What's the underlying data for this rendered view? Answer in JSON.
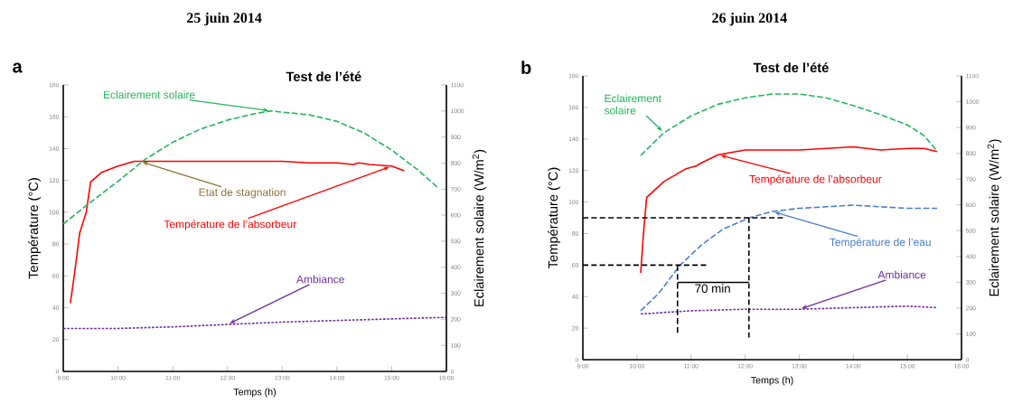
{
  "chart_data": [
    {
      "type": "line",
      "title": "25 juin 2014",
      "subtitle": "Test de l’été",
      "xlabel": "Temps (h)",
      "ylabel": "Température (°C)",
      "y2label": "Eclairement solaire (W/m$^{2}$)",
      "xlim": [
        9,
        16
      ],
      "xticks": [
        {
          "value": 9,
          "label": "9:00"
        },
        {
          "value": 10,
          "label": "10:00"
        },
        {
          "value": 11,
          "label": "11:00"
        },
        {
          "value": 12,
          "label": "12:00"
        },
        {
          "value": 13,
          "label": "13:00"
        },
        {
          "value": 14,
          "label": "14:00"
        },
        {
          "value": 15,
          "label": "15:00"
        },
        {
          "value": 16,
          "label": "16:00"
        }
      ],
      "ylim": [
        0,
        180
      ],
      "yticks": [
        0,
        20,
        40,
        60,
        80,
        100,
        120,
        140,
        160,
        180
      ],
      "y2lim": [
        0,
        1100
      ],
      "y2ticks": [
        0,
        100,
        200,
        300,
        400,
        500,
        600,
        700,
        800,
        900,
        1000,
        1100
      ],
      "annotations": [
        "a",
        {
          "text": "Etat de stagnation",
          "x": 10.4,
          "y": 132
        }
      ],
      "series": [
        {
          "name": "Eclairement solaire",
          "color": "#22b65a",
          "axis": "y2",
          "line_style": "dashed",
          "x": [
            9,
            9.5,
            10,
            10.5,
            11,
            11.5,
            12,
            12.5,
            12.8,
            13.5,
            14,
            14.5,
            15,
            15.5,
            15.85
          ],
          "values": [
            566,
            650,
            730,
            815,
            880,
            930,
            965,
            990,
            1000,
            985,
            960,
            915,
            850,
            770,
            705
          ]
        },
        {
          "name": "Température de l’absorbeur",
          "color": "#ff0000",
          "line_style": "solid",
          "x": [
            9.13,
            9.2,
            9.3,
            9.42,
            9.5,
            9.7,
            10,
            10.3,
            11,
            12,
            13,
            13.5,
            14,
            14.3,
            14.4,
            14.6,
            15,
            15.23
          ],
          "values": [
            43,
            60,
            87,
            100,
            119,
            125,
            129,
            132,
            132,
            132,
            132,
            131,
            131,
            130,
            131,
            130,
            129,
            126
          ]
        },
        {
          "name": "Ambiance",
          "color": "#7030a0",
          "line_style": "dotted",
          "x": [
            9,
            10,
            11,
            12,
            13,
            14,
            15,
            16
          ],
          "values": [
            27,
            27,
            28,
            29.5,
            31,
            32,
            33,
            34
          ]
        }
      ]
    },
    {
      "type": "line",
      "title": "26 juin 2014",
      "subtitle": "Test de l’été",
      "xlabel": "Temps (h)",
      "ylabel": "Température (°C)",
      "y2label": "Eclairement solaire (W/m$^{2}$)",
      "xlim": [
        9,
        16
      ],
      "xticks": [
        {
          "value": 9,
          "label": "9:00"
        },
        {
          "value": 10,
          "label": "10:00"
        },
        {
          "value": 11,
          "label": "11:00"
        },
        {
          "value": 12,
          "label": "12:00"
        },
        {
          "value": 13,
          "label": "13:00"
        },
        {
          "value": 14,
          "label": "14:00"
        },
        {
          "value": 15,
          "label": "15:00"
        },
        {
          "value": 16,
          "label": "16:00"
        }
      ],
      "ylim": [
        0,
        180
      ],
      "yticks": [
        0,
        20,
        40,
        60,
        80,
        100,
        120,
        140,
        160,
        180
      ],
      "y2lim": [
        0,
        1100
      ],
      "y2ticks": [
        0,
        100,
        200,
        300,
        400,
        500,
        600,
        700,
        800,
        900,
        1000,
        1100
      ],
      "annotations": [
        "b",
        {
          "text": "70 min",
          "x": 11.4,
          "y": 49
        }
      ],
      "series": [
        {
          "name": "Eclairement solaire",
          "color": "#22b65a",
          "axis": "y2",
          "line_style": "dashed",
          "x": [
            10.07,
            10.5,
            11,
            11.5,
            12,
            12.5,
            13,
            13.5,
            14,
            14.5,
            15,
            15.3,
            15.55
          ],
          "values": [
            792,
            880,
            945,
            990,
            1015,
            1030,
            1030,
            1015,
            985,
            950,
            910,
            870,
            809
          ]
        },
        {
          "name": "Température de l’absorbeur",
          "color": "#ff0000",
          "line_style": "solid",
          "x": [
            10.07,
            10.12,
            10.18,
            10.5,
            10.9,
            11.1,
            11.2,
            11.5,
            12,
            13,
            13.5,
            14,
            14.5,
            15,
            15.3,
            15.55
          ],
          "values": [
            55,
            80,
            103,
            113,
            121,
            123,
            125,
            130,
            133,
            133,
            134,
            135,
            133,
            134,
            134,
            132
          ]
        },
        {
          "name": "Température de l’eau",
          "color": "#4a7fd0",
          "line_style": "dashed",
          "x": [
            10.07,
            10.4,
            10.8,
            11.2,
            11.6,
            12.08,
            12.5,
            13,
            13.5,
            14,
            14.5,
            15,
            15.55
          ],
          "values": [
            31,
            42,
            60,
            73,
            83,
            90,
            94,
            96,
            97,
            98,
            97,
            96,
            96
          ]
        },
        {
          "name": "Ambiance",
          "color": "#7030a0",
          "line_style": "dotted",
          "x": [
            10.07,
            11,
            12,
            13,
            14,
            15,
            15.55
          ],
          "values": [
            29,
            31,
            32,
            32,
            33,
            34,
            33
          ]
        },
        {
          "color": "#000000",
          "line_style": "dashed",
          "x": [
            9,
            12.7
          ],
          "values": [
            90,
            90
          ]
        },
        {
          "color": "#000000",
          "line_style": "dashed",
          "x": [
            9,
            11.28
          ],
          "values": [
            60,
            60
          ]
        },
        {
          "color": "#000000",
          "line_style": "dashed",
          "x": [
            10.75,
            10.75
          ],
          "values": [
            60,
            17
          ]
        },
        {
          "color": "#000000",
          "line_style": "dashed",
          "x": [
            12.07,
            12.07
          ],
          "values": [
            90,
            14
          ]
        },
        {
          "color": "#000000",
          "line_style": "solid",
          "x": [
            10.75,
            12.07
          ],
          "values": [
            49,
            49
          ]
        }
      ]
    }
  ]
}
